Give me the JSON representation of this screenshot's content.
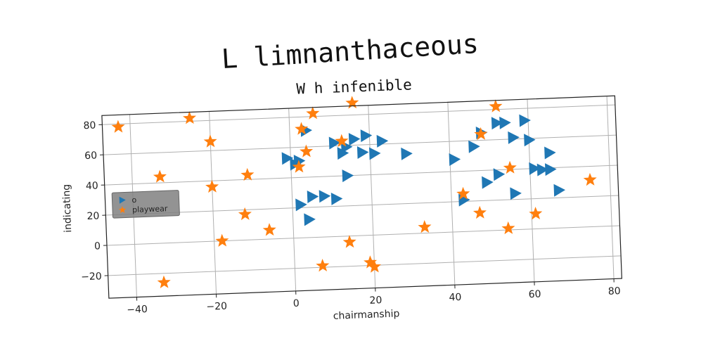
{
  "suptitle": "L limnanthaceous",
  "chart_data": {
    "type": "scatter",
    "title": "W h infenible",
    "xlabel": "chairmanship",
    "ylabel": "indicating",
    "xlim": [
      -47,
      82
    ],
    "ylim": [
      -35,
      86
    ],
    "xticks": [
      -40,
      -20,
      0,
      20,
      40,
      60,
      80
    ],
    "yticks": [
      -20,
      0,
      20,
      40,
      60,
      80
    ],
    "grid": true,
    "legend_position": "center-left",
    "series": [
      {
        "name": "o",
        "marker": "triangle-right",
        "color": "#1f77b4",
        "points": [
          [
            4,
            71
          ],
          [
            -1,
            53
          ],
          [
            2,
            51
          ],
          [
            1,
            49
          ],
          [
            11,
            62
          ],
          [
            14,
            59
          ],
          [
            16,
            64
          ],
          [
            19,
            66
          ],
          [
            23,
            62
          ],
          [
            13,
            55
          ],
          [
            18,
            55
          ],
          [
            21,
            54
          ],
          [
            29,
            53
          ],
          [
            41,
            48
          ],
          [
            46,
            56
          ],
          [
            48,
            65
          ],
          [
            52,
            71
          ],
          [
            54,
            71
          ],
          [
            59,
            72
          ],
          [
            56,
            61
          ],
          [
            60,
            59
          ],
          [
            65,
            50
          ],
          [
            61,
            40
          ],
          [
            63,
            39
          ],
          [
            65,
            39
          ],
          [
            67,
            25
          ],
          [
            56,
            24
          ],
          [
            52,
            37
          ],
          [
            49,
            32
          ],
          [
            43,
            21
          ],
          [
            14,
            40
          ],
          [
            5,
            27
          ],
          [
            8,
            27
          ],
          [
            11,
            25
          ],
          [
            2,
            22
          ],
          [
            4,
            12
          ]
        ]
      },
      {
        "name": "playwear",
        "marker": "star",
        "color": "#ff7f0e",
        "points": [
          [
            -43,
            78
          ],
          [
            -25,
            82
          ],
          [
            -20,
            66
          ],
          [
            6,
            82
          ],
          [
            16,
            88
          ],
          [
            3,
            72
          ],
          [
            4,
            57
          ],
          [
            13,
            63
          ],
          [
            2,
            47
          ],
          [
            -11,
            43
          ],
          [
            -20,
            36
          ],
          [
            -33,
            44
          ],
          [
            -12,
            17
          ],
          [
            -6,
            6
          ],
          [
            -18,
            0
          ],
          [
            -33,
            -26
          ],
          [
            7,
            -19
          ],
          [
            14,
            -4
          ],
          [
            19,
            -18
          ],
          [
            20,
            -21
          ],
          [
            33,
            4
          ],
          [
            43,
            25
          ],
          [
            47,
            12
          ],
          [
            48,
            64
          ],
          [
            52,
            82
          ],
          [
            61,
            93
          ],
          [
            55,
            41
          ],
          [
            54,
            1
          ],
          [
            61,
            10
          ],
          [
            75,
            31
          ]
        ]
      }
    ]
  }
}
